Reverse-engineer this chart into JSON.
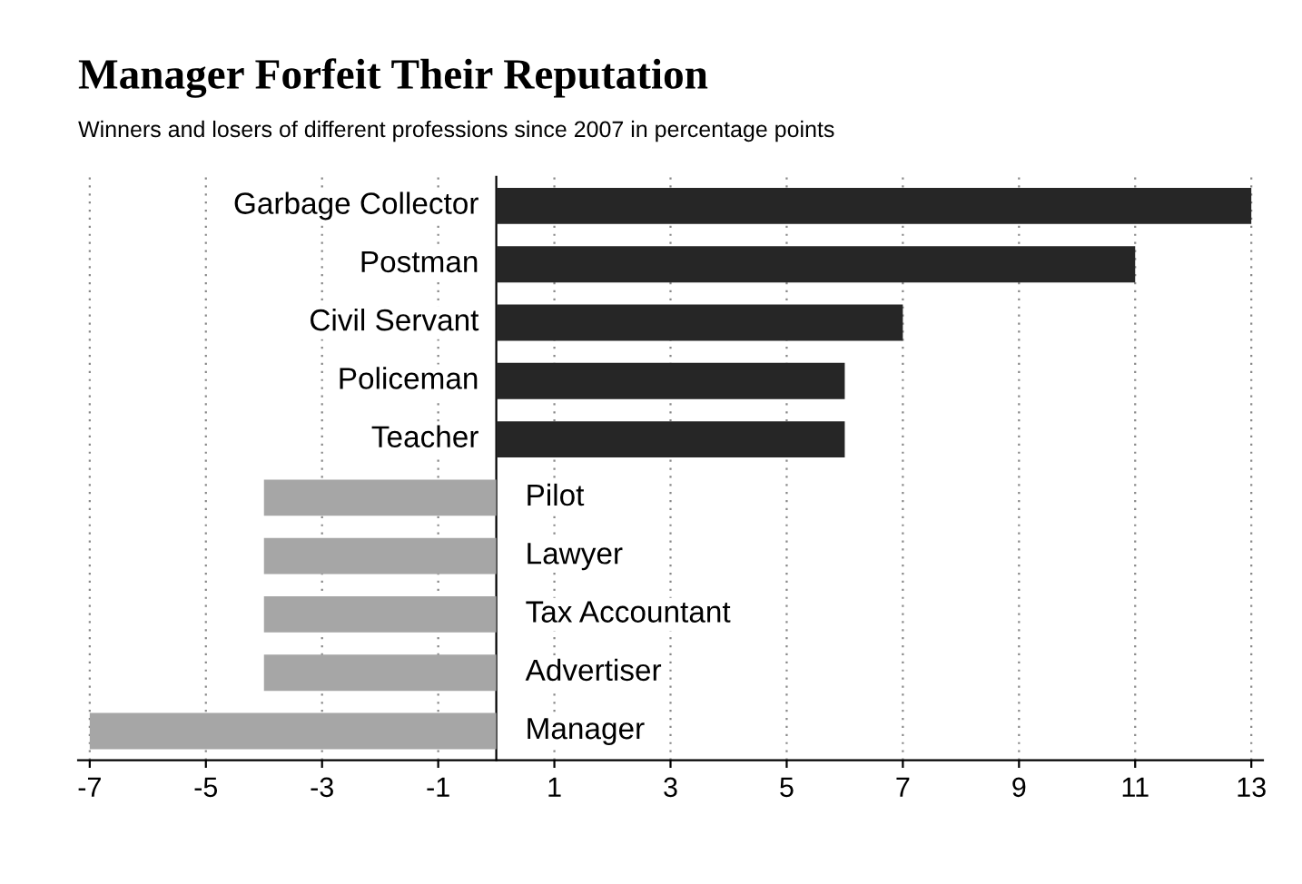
{
  "chart_data": {
    "type": "bar",
    "orientation": "horizontal",
    "title": "Manager Forfeit Their Reputation",
    "subtitle": "Winners and losers of different professions since 2007 in percentage points",
    "categories": [
      "Garbage Collector",
      "Postman",
      "Civil Servant",
      "Policeman",
      "Teacher",
      "Pilot",
      "Lawyer",
      "Tax Accountant",
      "Advertiser",
      "Manager"
    ],
    "values": [
      13,
      11,
      7,
      6,
      6,
      -4,
      -4,
      -4,
      -4,
      -7
    ],
    "colors": [
      "#262626",
      "#262626",
      "#262626",
      "#262626",
      "#262626",
      "#a6a6a6",
      "#a6a6a6",
      "#a6a6a6",
      "#a6a6a6",
      "#a6a6a6"
    ],
    "xlim": [
      -7.2,
      13.2
    ],
    "xticks": [
      -7,
      -5,
      -3,
      -1,
      1,
      3,
      5,
      7,
      9,
      11,
      13
    ],
    "grid": "x"
  }
}
